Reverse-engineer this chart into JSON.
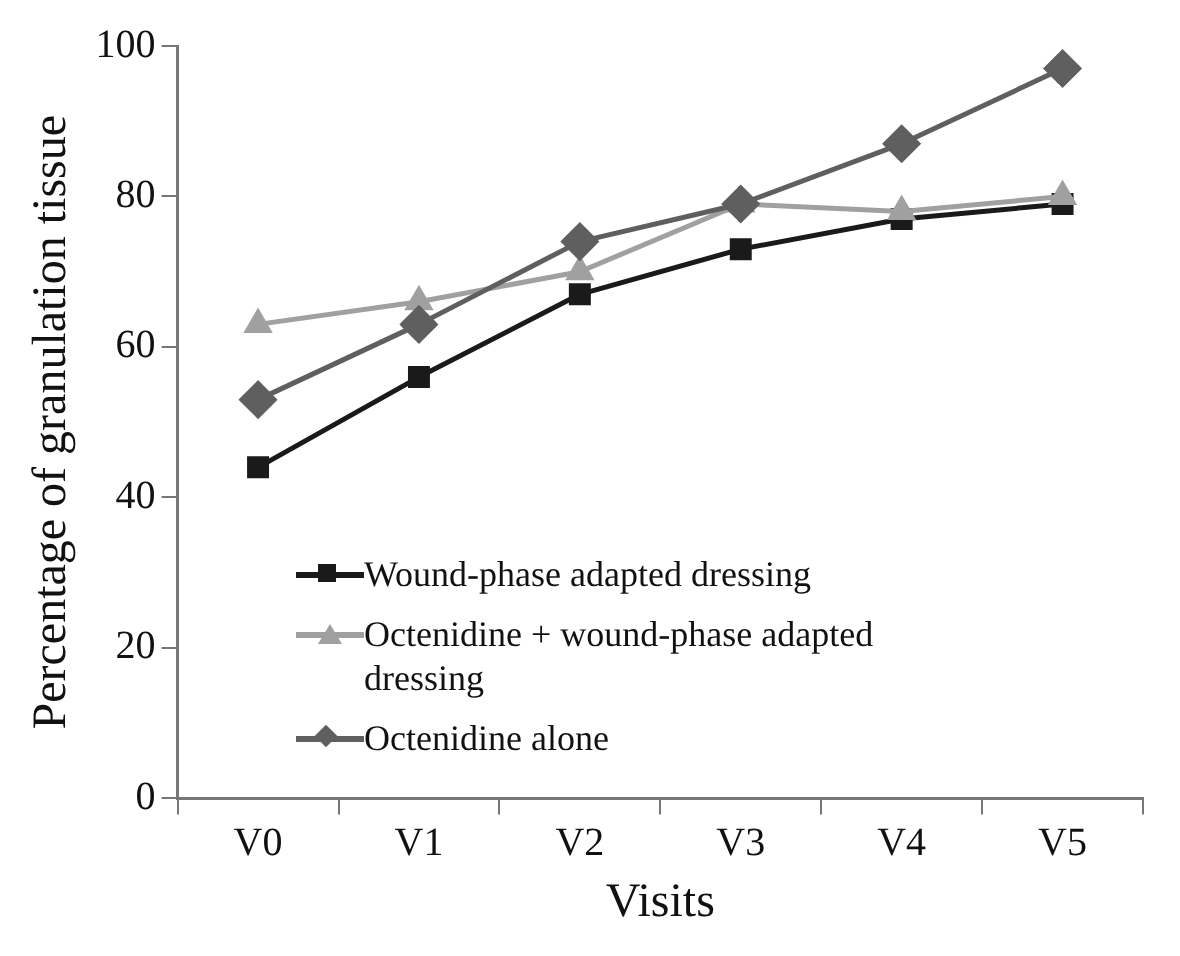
{
  "chart_data": {
    "type": "line",
    "xlabel": "Visits",
    "ylabel": "Percentage of granulation tissue",
    "categories": [
      "V0",
      "V1",
      "V2",
      "V3",
      "V4",
      "V5"
    ],
    "series": [
      {
        "name": "Wound-phase adapted dressing",
        "color": "#1a1a1a",
        "marker": "square",
        "values": [
          44,
          56,
          67,
          73,
          77,
          79
        ]
      },
      {
        "name": "Octenidine + wound-phase adapted dressing",
        "color": "#a0a0a0",
        "marker": "triangle",
        "values": [
          63,
          66,
          70,
          79,
          78,
          80
        ]
      },
      {
        "name": "Octenidine alone",
        "color": "#5f5f5f",
        "marker": "diamond",
        "values": [
          53,
          63,
          74,
          79,
          87,
          97
        ]
      }
    ],
    "ylim": [
      0,
      100
    ],
    "yticks": [
      0,
      20,
      40,
      60,
      80,
      100
    ],
    "grid": false,
    "legend": "bottom left",
    "line_style": "solid"
  }
}
